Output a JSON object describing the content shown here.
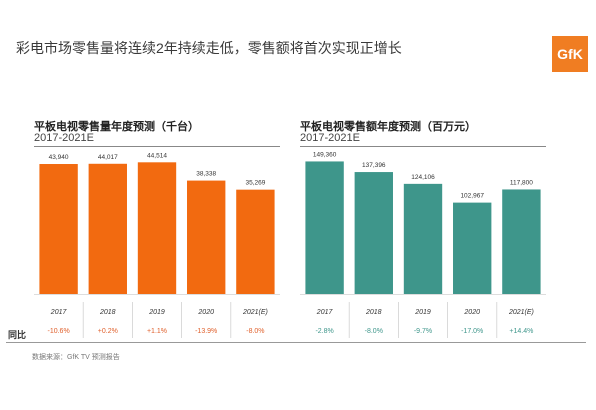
{
  "slide": {
    "title": "彩电市场零售量将连续2年持续走低，零售额将首次实现正增长",
    "logo": "GfK",
    "yoy_label": "同比",
    "source": "数据来源：GfK TV 预测报告"
  },
  "colors": {
    "volume_bar": "#f26a10",
    "value_bar": "#3e968b",
    "yoy_negative": "#e0602c",
    "yoy_positive_value": "#3e968b"
  },
  "chart_data": [
    {
      "type": "bar",
      "title": "平板电视零售量年度预测（千台）",
      "subtitle": "2017-2021E",
      "categories": [
        "2017",
        "2018",
        "2019",
        "2020",
        "2021(E)"
      ],
      "values": [
        43940,
        44017,
        44514,
        38338,
        35269
      ],
      "value_labels": [
        "43,940",
        "44,017",
        "44,514",
        "38,338",
        "35,269"
      ],
      "yoy": [
        "-10.6%",
        "+0.2%",
        "+1.1%",
        "-13.9%",
        "-8.0%"
      ],
      "ylim": [
        0,
        48000
      ],
      "color": "#f26a10"
    },
    {
      "type": "bar",
      "title": "平板电视零售额年度预测（百万元）",
      "subtitle": "2017-2021E",
      "categories": [
        "2017",
        "2018",
        "2019",
        "2020",
        "2021(E)"
      ],
      "values": [
        149360,
        137396,
        124106,
        102967,
        117800
      ],
      "value_labels": [
        "149,360",
        "137,396",
        "124,106",
        "102,967",
        "117,800"
      ],
      "yoy": [
        "-2.8%",
        "-8.0%",
        "-9.7%",
        "-17.0%",
        "+14.4%"
      ],
      "ylim": [
        0,
        160000
      ],
      "color": "#3e968b"
    }
  ]
}
